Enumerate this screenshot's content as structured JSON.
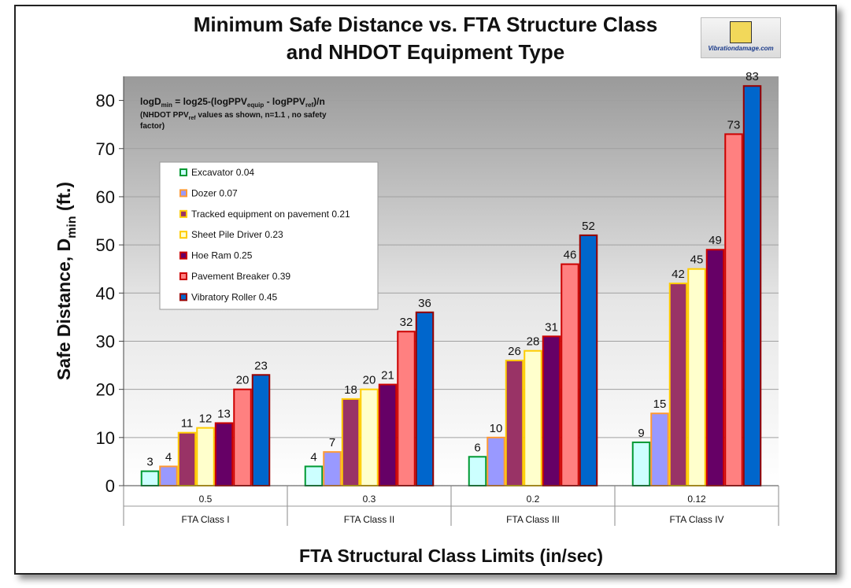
{
  "logo": {
    "text": "Vibrationdamage.com"
  },
  "chart_data": {
    "type": "bar",
    "title_line1": "Minimum Safe Distance vs. FTA Structure Class",
    "title_line2": "and NHDOT Equipment Type",
    "xlabel": "FTA Structural Class Limits (in/sec)",
    "ylabel": "Safe Distance, D",
    "ylabel_sub": "min",
    "ylabel_tail": " (ft.)",
    "ylim": [
      0,
      85
    ],
    "yticks": [
      0,
      10,
      20,
      30,
      40,
      50,
      60,
      70,
      80
    ],
    "grid": true,
    "categories": [
      "0.5",
      "0.3",
      "0.2",
      "0.12"
    ],
    "category_classes": [
      "FTA Class I",
      "FTA Class II",
      "FTA Class III",
      "FTA Class IV"
    ],
    "series": [
      {
        "name": "Excavator 0.04",
        "values": [
          3,
          4,
          6,
          9
        ],
        "color": "#ccffff",
        "border": "#009933"
      },
      {
        "name": "Dozer 0.07",
        "values": [
          4,
          7,
          10,
          15
        ],
        "color": "#9999ff",
        "border": "#ff9933"
      },
      {
        "name": "Tracked equipment on pavement 0.21",
        "values": [
          11,
          18,
          26,
          42
        ],
        "color": "#993366",
        "border": "#ffcc00"
      },
      {
        "name": "Sheet Pile Driver 0.23",
        "values": [
          12,
          20,
          28,
          45
        ],
        "color": "#ffffcc",
        "border": "#ffcc00"
      },
      {
        "name": "Hoe Ram 0.25",
        "values": [
          13,
          21,
          31,
          49
        ],
        "color": "#660066",
        "border": "#cc0000"
      },
      {
        "name": "Pavement Breaker 0.39",
        "values": [
          20,
          32,
          46,
          73
        ],
        "color": "#ff8080",
        "border": "#cc0000"
      },
      {
        "name": "Vibratory Roller 0.45",
        "values": [
          23,
          36,
          52,
          83
        ],
        "color": "#0066cc",
        "border": "#990000"
      }
    ],
    "annotation": {
      "formula_a": "logD",
      "formula_a_sub": "min",
      "formula_b": " = log25-(logPPV",
      "formula_b_sub": "equip",
      "formula_c": " - logPPV",
      "formula_c_sub": "ref",
      "formula_d": ")/n",
      "note_a": "(NHDOT PPV",
      "note_a_sub": "ref",
      "note_b": " values as shown, n=1.1 , no safety",
      "note_line2": "factor)"
    },
    "legend_position": "upper-left"
  }
}
